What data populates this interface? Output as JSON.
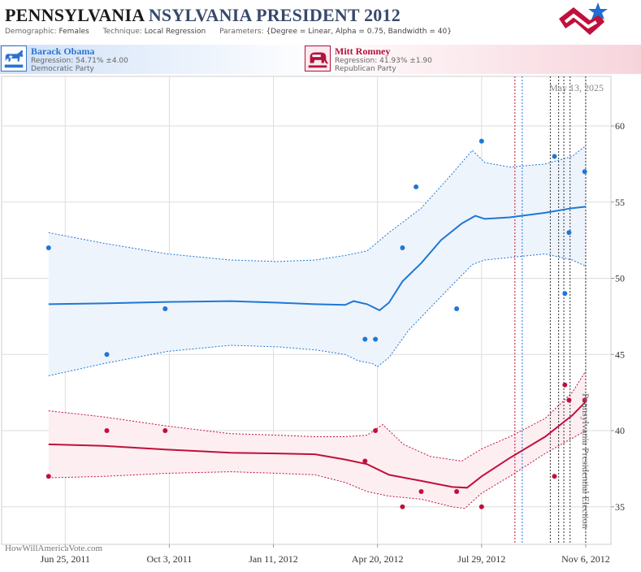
{
  "header": {
    "title_main": "PENNSYLVANIA",
    "title_race": "NSYLVANIA PRESIDENT 2012",
    "demographic_label": "Demographic:",
    "demographic_value": "Females",
    "technique_label": "Technique:",
    "technique_value": "Local Regression",
    "parameters_label": "Parameters:",
    "parameters_value": "{Degree = Linear, Alpha = 0.75, Bandwidth = 40}"
  },
  "candidates": {
    "dem": {
      "name": "Barack Obama",
      "regression": "Regression: 54.71% ±4.00",
      "party": "Democratic Party",
      "icon": "donkey-icon"
    },
    "rep": {
      "name": "Mitt Romney",
      "regression": "Regression: 41.93% ±1.90",
      "party": "Republican Party",
      "icon": "elephant-icon"
    }
  },
  "colors": {
    "dem": "#1f77d6",
    "rep": "#c0103b",
    "dem_band": "#eef4fc",
    "rep_band": "#fdeef2",
    "grid": "#dddddd"
  },
  "watermark": "HowWillAmericaVote.com",
  "chart_data": {
    "type": "line",
    "title": "",
    "xlabel": "",
    "ylabel": "",
    "date_label": "May 13, 2025",
    "vertical_caption": "Pennsylvania Presidential Election",
    "x_ticks": [
      "Jun 25, 2011",
      "Oct 3, 2011",
      "Jan 11, 2012",
      "Apr 20, 2012",
      "Jul 29, 2012",
      "Nov 6, 2012"
    ],
    "x_tick_dates": [
      "2011-06-25",
      "2011-10-03",
      "2012-01-11",
      "2012-04-20",
      "2012-07-29",
      "2012-11-06"
    ],
    "xlim": [
      "2011-05-23",
      "2012-11-24"
    ],
    "y_ticks": [
      35,
      40,
      45,
      50,
      55,
      60
    ],
    "ylim": [
      32,
      63
    ],
    "grid": true,
    "y_axis_side": "right",
    "series": [
      {
        "name": "Barack Obama",
        "party": "dem",
        "trend": [
          [
            "2011-06-09",
            48.3
          ],
          [
            "2011-08-01",
            48.35
          ],
          [
            "2011-10-01",
            48.45
          ],
          [
            "2011-12-01",
            48.5
          ],
          [
            "2012-01-15",
            48.4
          ],
          [
            "2012-02-20",
            48.3
          ],
          [
            "2012-03-20",
            48.25
          ],
          [
            "2012-03-28",
            48.5
          ],
          [
            "2012-04-10",
            48.3
          ],
          [
            "2012-04-22",
            47.9
          ],
          [
            "2012-05-01",
            48.4
          ],
          [
            "2012-05-14",
            49.8
          ],
          [
            "2012-06-01",
            51.0
          ],
          [
            "2012-06-20",
            52.5
          ],
          [
            "2012-07-10",
            53.6
          ],
          [
            "2012-07-23",
            54.1
          ],
          [
            "2012-08-01",
            53.9
          ],
          [
            "2012-08-25",
            54.0
          ],
          [
            "2012-09-28",
            54.3
          ],
          [
            "2012-10-24",
            54.6
          ],
          [
            "2012-11-06",
            54.7
          ]
        ],
        "upper": [
          [
            "2011-06-09",
            53.0
          ],
          [
            "2011-08-01",
            52.3
          ],
          [
            "2011-10-01",
            51.6
          ],
          [
            "2011-12-01",
            51.2
          ],
          [
            "2012-01-15",
            51.1
          ],
          [
            "2012-02-20",
            51.2
          ],
          [
            "2012-03-20",
            51.5
          ],
          [
            "2012-04-10",
            51.8
          ],
          [
            "2012-05-01",
            53.0
          ],
          [
            "2012-06-01",
            54.6
          ],
          [
            "2012-06-30",
            56.8
          ],
          [
            "2012-07-20",
            58.4
          ],
          [
            "2012-08-01",
            57.6
          ],
          [
            "2012-08-25",
            57.3
          ],
          [
            "2012-09-28",
            57.5
          ],
          [
            "2012-10-24",
            58.0
          ],
          [
            "2012-11-06",
            58.7
          ]
        ],
        "lower": [
          [
            "2011-06-09",
            43.6
          ],
          [
            "2011-08-01",
            44.4
          ],
          [
            "2011-10-01",
            45.2
          ],
          [
            "2011-12-01",
            45.6
          ],
          [
            "2012-01-15",
            45.5
          ],
          [
            "2012-02-20",
            45.3
          ],
          [
            "2012-03-20",
            45.0
          ],
          [
            "2012-04-01",
            44.6
          ],
          [
            "2012-04-15",
            44.4
          ],
          [
            "2012-04-20",
            44.2
          ],
          [
            "2012-05-01",
            44.8
          ],
          [
            "2012-05-20",
            46.6
          ],
          [
            "2012-06-20",
            48.8
          ],
          [
            "2012-07-20",
            50.9
          ],
          [
            "2012-08-01",
            51.2
          ],
          [
            "2012-08-30",
            51.4
          ],
          [
            "2012-09-28",
            51.6
          ],
          [
            "2012-10-24",
            51.2
          ],
          [
            "2012-11-06",
            50.8
          ]
        ],
        "polls": [
          [
            "2011-06-09",
            52
          ],
          [
            "2011-08-04",
            45
          ],
          [
            "2011-09-29",
            48
          ],
          [
            "2012-04-08",
            46
          ],
          [
            "2012-04-18",
            46
          ],
          [
            "2012-05-14",
            52
          ],
          [
            "2012-05-27",
            56
          ],
          [
            "2012-07-05",
            48
          ],
          [
            "2012-07-29",
            59
          ],
          [
            "2012-10-07",
            58
          ],
          [
            "2012-10-17",
            49
          ],
          [
            "2012-10-21",
            53
          ],
          [
            "2012-11-05",
            57
          ]
        ]
      },
      {
        "name": "Mitt Romney",
        "party": "rep",
        "trend": [
          [
            "2011-06-09",
            39.1
          ],
          [
            "2011-08-01",
            39.0
          ],
          [
            "2011-10-01",
            38.75
          ],
          [
            "2011-12-01",
            38.55
          ],
          [
            "2012-01-15",
            38.5
          ],
          [
            "2012-02-20",
            38.45
          ],
          [
            "2012-03-20",
            38.1
          ],
          [
            "2012-04-10",
            37.8
          ],
          [
            "2012-05-01",
            37.1
          ],
          [
            "2012-06-01",
            36.7
          ],
          [
            "2012-07-01",
            36.3
          ],
          [
            "2012-07-15",
            36.25
          ],
          [
            "2012-07-29",
            37.0
          ],
          [
            "2012-08-25",
            38.2
          ],
          [
            "2012-09-28",
            39.6
          ],
          [
            "2012-10-24",
            41.0
          ],
          [
            "2012-11-06",
            41.9
          ]
        ],
        "upper": [
          [
            "2011-06-09",
            41.3
          ],
          [
            "2011-08-01",
            40.9
          ],
          [
            "2011-10-01",
            40.3
          ],
          [
            "2011-12-01",
            39.8
          ],
          [
            "2012-01-15",
            39.7
          ],
          [
            "2012-02-20",
            39.6
          ],
          [
            "2012-03-20",
            39.6
          ],
          [
            "2012-04-10",
            39.7
          ],
          [
            "2012-04-25",
            40.4
          ],
          [
            "2012-05-15",
            39.1
          ],
          [
            "2012-06-10",
            38.3
          ],
          [
            "2012-07-10",
            38.0
          ],
          [
            "2012-07-29",
            38.8
          ],
          [
            "2012-08-25",
            39.6
          ],
          [
            "2012-09-28",
            40.8
          ],
          [
            "2012-10-24",
            42.5
          ],
          [
            "2012-11-06",
            43.9
          ]
        ],
        "lower": [
          [
            "2011-06-09",
            36.9
          ],
          [
            "2011-08-01",
            37.0
          ],
          [
            "2011-10-01",
            37.2
          ],
          [
            "2011-12-01",
            37.3
          ],
          [
            "2012-01-15",
            37.2
          ],
          [
            "2012-02-20",
            37.1
          ],
          [
            "2012-03-20",
            36.6
          ],
          [
            "2012-04-10",
            36.0
          ],
          [
            "2012-05-01",
            35.7
          ],
          [
            "2012-06-01",
            35.5
          ],
          [
            "2012-07-01",
            35.0
          ],
          [
            "2012-07-13",
            34.9
          ],
          [
            "2012-07-29",
            35.9
          ],
          [
            "2012-08-25",
            37.0
          ],
          [
            "2012-09-28",
            38.5
          ],
          [
            "2012-10-24",
            39.5
          ],
          [
            "2012-11-06",
            40.0
          ]
        ],
        "polls": [
          [
            "2011-06-09",
            37
          ],
          [
            "2011-08-04",
            40
          ],
          [
            "2011-09-29",
            40
          ],
          [
            "2012-04-08",
            38
          ],
          [
            "2012-04-18",
            40
          ],
          [
            "2012-05-14",
            35
          ],
          [
            "2012-06-01",
            36
          ],
          [
            "2012-07-05",
            36
          ],
          [
            "2012-07-29",
            35
          ],
          [
            "2012-10-07",
            37
          ],
          [
            "2012-10-17",
            43
          ],
          [
            "2012-10-21",
            42
          ],
          [
            "2012-11-05",
            42
          ]
        ]
      }
    ],
    "event_lines": [
      {
        "date": "2012-08-30",
        "color": "#c0103b"
      },
      {
        "date": "2012-09-06",
        "color": "#1f77d6"
      },
      {
        "date": "2012-10-03",
        "color": "#333333"
      },
      {
        "date": "2012-10-11",
        "color": "#333333"
      },
      {
        "date": "2012-10-16",
        "color": "#333333"
      },
      {
        "date": "2012-10-22",
        "color": "#333333"
      },
      {
        "date": "2012-11-06",
        "color": "#333333"
      }
    ]
  }
}
